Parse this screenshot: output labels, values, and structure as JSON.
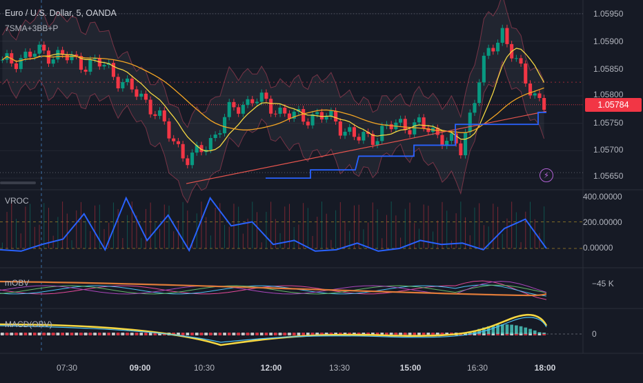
{
  "symbol_title": "Euro / U.S. Dollar, 5, OANDA",
  "indicator_label": "7SMA+3BB+P",
  "pane_labels": {
    "vroc": "VROC",
    "mobv": "mOBV",
    "macd": "MACD(OBV)"
  },
  "price_axis": [
    "1.05950",
    "1.05900",
    "1.05850",
    "1.05800",
    "1.05750",
    "1.05700",
    "1.05650"
  ],
  "current_price": "1.05784",
  "vroc_axis": [
    "400.00000",
    "200.00000",
    "0.00000"
  ],
  "obv_axis": [
    "−45 K"
  ],
  "macd_axis": [
    "0"
  ],
  "time_axis": [
    {
      "label": "07:30",
      "bold": false
    },
    {
      "label": "09:00",
      "bold": true
    },
    {
      "label": "10:30",
      "bold": false
    },
    {
      "label": "12:00",
      "bold": true
    },
    {
      "label": "13:30",
      "bold": false
    },
    {
      "label": "15:00",
      "bold": true
    },
    {
      "label": "16:30",
      "bold": false
    },
    {
      "label": "18:00",
      "bold": true
    }
  ],
  "colors": {
    "background": "#161a25",
    "up": "#089981",
    "down": "#f23645",
    "sma_yellow": "#f5d742",
    "sma_orange": "#f5a623",
    "sma_red": "#e8554e",
    "pivot_blue": "#2962ff",
    "vroc_line": "#2962ff"
  },
  "icons": {
    "alert": "lightning-icon"
  },
  "chart_data": {
    "type": "line",
    "price": {
      "x": [
        "07:05",
        "07:30",
        "07:55",
        "08:20",
        "08:45",
        "09:10",
        "09:35",
        "10:00",
        "10:25",
        "10:50",
        "11:15",
        "11:40",
        "12:05",
        "12:30",
        "12:55",
        "13:20",
        "13:45",
        "14:10",
        "14:35",
        "15:00",
        "15:25",
        "15:50",
        "16:15",
        "16:40",
        "17:05",
        "17:30",
        "17:55"
      ],
      "close": [
        1.05858,
        1.05872,
        1.0588,
        1.0587,
        1.0586,
        1.05855,
        1.05815,
        1.0579,
        1.0573,
        1.0568,
        1.0572,
        1.05775,
        1.05795,
        1.0578,
        1.0576,
        1.05765,
        1.05755,
        1.0572,
        1.0573,
        1.0575,
        1.05745,
        1.0573,
        1.057,
        1.0585,
        1.0592,
        1.0583,
        1.05784
      ],
      "ylim": [
        1.05635,
        1.05965
      ]
    },
    "vroc": {
      "values": [
        -10,
        -20,
        30,
        70,
        260,
        -10,
        380,
        60,
        250,
        -15,
        380,
        170,
        200,
        30,
        60,
        -20,
        -10,
        40,
        -20,
        0,
        60,
        30,
        40,
        -10,
        150,
        220,
        0
      ]
    },
    "obv_ylabel": "−45 K",
    "macd_zero": "0"
  }
}
